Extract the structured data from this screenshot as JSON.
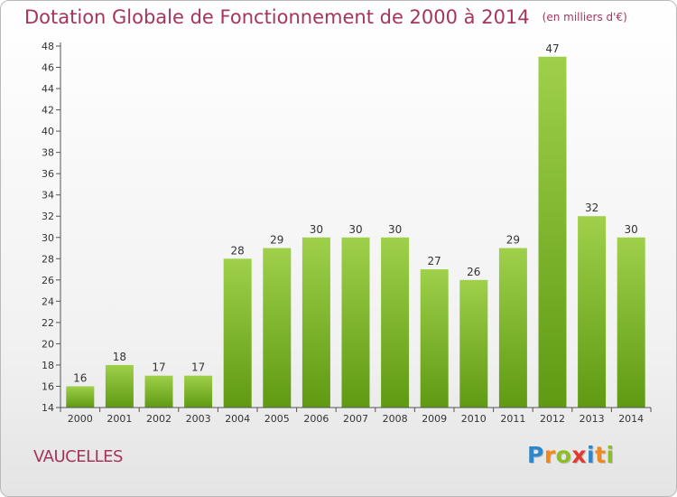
{
  "title": "Dotation Globale de Fonctionnement de 2000 à 2014",
  "unit_note": "(en milliers d'€)",
  "commune": "VAUCELLES",
  "logo": {
    "text": "Proxiti",
    "letters": [
      {
        "char": "P",
        "color": "#2f86c8"
      },
      {
        "char": "r",
        "color": "#f08a1c"
      },
      {
        "char": "o",
        "color": "#8cbf26"
      },
      {
        "char": "x",
        "color": "#e03a2f"
      },
      {
        "char": "i",
        "color": "#2f86c8"
      },
      {
        "char": "t",
        "color": "#f08a1c"
      },
      {
        "char": "i",
        "color": "#8cbf26"
      }
    ]
  },
  "colors": {
    "title": "#a5355a",
    "bar_top": "#9fd04a",
    "bar_bottom": "#5f9a12"
  },
  "chart_data": {
    "type": "bar",
    "categories": [
      "2000",
      "2001",
      "2002",
      "2003",
      "2004",
      "2005",
      "2006",
      "2007",
      "2008",
      "2009",
      "2010",
      "2011",
      "2012",
      "2013",
      "2014"
    ],
    "values": [
      16,
      18,
      17,
      17,
      28,
      29,
      30,
      30,
      30,
      27,
      26,
      29,
      47,
      32,
      30
    ],
    "ylim": [
      14,
      48
    ],
    "yticks": [
      14,
      16,
      18,
      20,
      22,
      24,
      26,
      28,
      30,
      32,
      34,
      36,
      38,
      40,
      42,
      44,
      46,
      48
    ],
    "grid": false,
    "xlabel": "",
    "ylabel": ""
  }
}
